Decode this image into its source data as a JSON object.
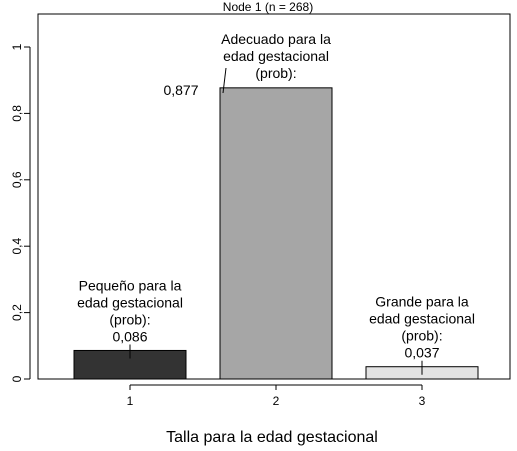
{
  "chart_data": {
    "type": "bar",
    "title": "Node 1 (n = 268)",
    "xlabel": "Talla para la edad gestacional",
    "ylabel": "",
    "ylim": [
      0,
      1.1
    ],
    "yticks": [
      0,
      0.2,
      0.4,
      0.6,
      0.8,
      1
    ],
    "ytick_labels": [
      "0",
      "0,2",
      "0,4",
      "0,6",
      "0,8",
      "1"
    ],
    "categories": [
      "1",
      "2",
      "3"
    ],
    "values": [
      0.086,
      0.877,
      0.037
    ],
    "bar_colors": [
      "#333333",
      "#a6a6a6",
      "#e3e3e3"
    ],
    "annotations": [
      {
        "lines": [
          "Pequeño para la",
          "edad gestacional",
          "(prob):"
        ],
        "value_label": "0,086"
      },
      {
        "lines": [
          "Adecuado para la",
          "edad gestacional",
          "(prob):"
        ],
        "value_label": "0,877"
      },
      {
        "lines": [
          "Grande para la",
          "edad gestacional",
          "(prob):"
        ],
        "value_label": "0,037"
      }
    ],
    "grid": false,
    "legend": "none"
  }
}
